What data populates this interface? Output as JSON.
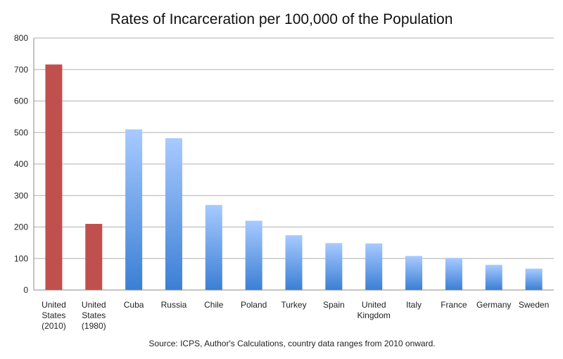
{
  "chart_data": {
    "type": "bar",
    "title": "Rates of Incarceration per 100,000 of the Population",
    "source": "Source: ICPS, Author's Calculations, country data ranges from 2010 onward.",
    "categories": [
      [
        "United",
        "States",
        "(2010)"
      ],
      [
        "United",
        "States",
        "(1980)"
      ],
      [
        "Cuba"
      ],
      [
        "Russia"
      ],
      [
        "Chile"
      ],
      [
        "Poland"
      ],
      [
        "Turkey"
      ],
      [
        "Spain"
      ],
      [
        "United",
        "Kingdom"
      ],
      [
        "Italy"
      ],
      [
        "France"
      ],
      [
        "Germany"
      ],
      [
        "Sweden"
      ]
    ],
    "values": [
      716,
      210,
      510,
      482,
      270,
      220,
      174,
      149,
      148,
      108,
      102,
      80,
      68
    ],
    "highlight": [
      true,
      true,
      false,
      false,
      false,
      false,
      false,
      false,
      false,
      false,
      false,
      false,
      false
    ],
    "ylim": [
      0,
      800
    ],
    "yticks": [
      0,
      100,
      200,
      300,
      400,
      500,
      600,
      700,
      800
    ],
    "grid": true,
    "legend": "none",
    "colors": {
      "highlight": "#c0504d",
      "bar_top": "#a8caff",
      "bar_bottom": "#3b7fd4",
      "grid": "#b0b0b0"
    }
  }
}
